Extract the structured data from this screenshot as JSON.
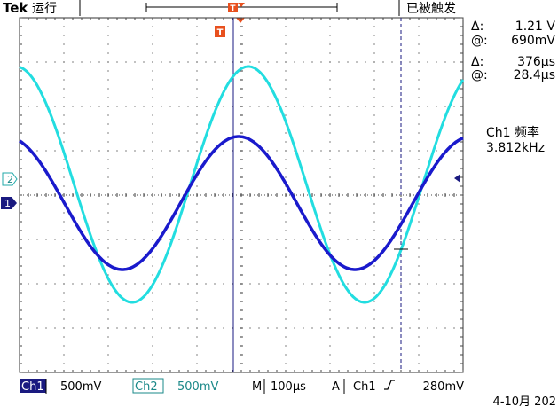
{
  "header": {
    "brand": "Tek",
    "run_state": "运行",
    "trigger_status": "已被触发",
    "trigger_marker": "T"
  },
  "cursors": {
    "voltage_delta_symbol": "Δ:",
    "voltage_delta": "1.21 V",
    "voltage_at_symbol": "@:",
    "voltage_at": "690mV",
    "time_delta_symbol": "Δ:",
    "time_delta": "376μs",
    "time_at_symbol": "@:",
    "time_at": "28.4μs"
  },
  "measurement": {
    "label": "Ch1 频率",
    "value": "3.812kHz"
  },
  "channel_markers": {
    "ch2": "2",
    "ch1": "1"
  },
  "status_bar": {
    "ch1_label": "Ch1",
    "ch1_scale": "500mV",
    "ch2_label": "Ch2",
    "ch2_scale": "500mV",
    "timebase_label": "M",
    "timebase": "100μs",
    "trigger_mode": "A",
    "trigger_source": "Ch1",
    "trigger_slope_icon": "rising-edge-icon",
    "trigger_level": "280mV"
  },
  "date": "4-10月 202",
  "colors": {
    "ch1": "#1a1acc",
    "ch2": "#22dde0",
    "cursor": "#1a1a80",
    "trigger": "#e8501e",
    "grid": "#333333"
  }
}
